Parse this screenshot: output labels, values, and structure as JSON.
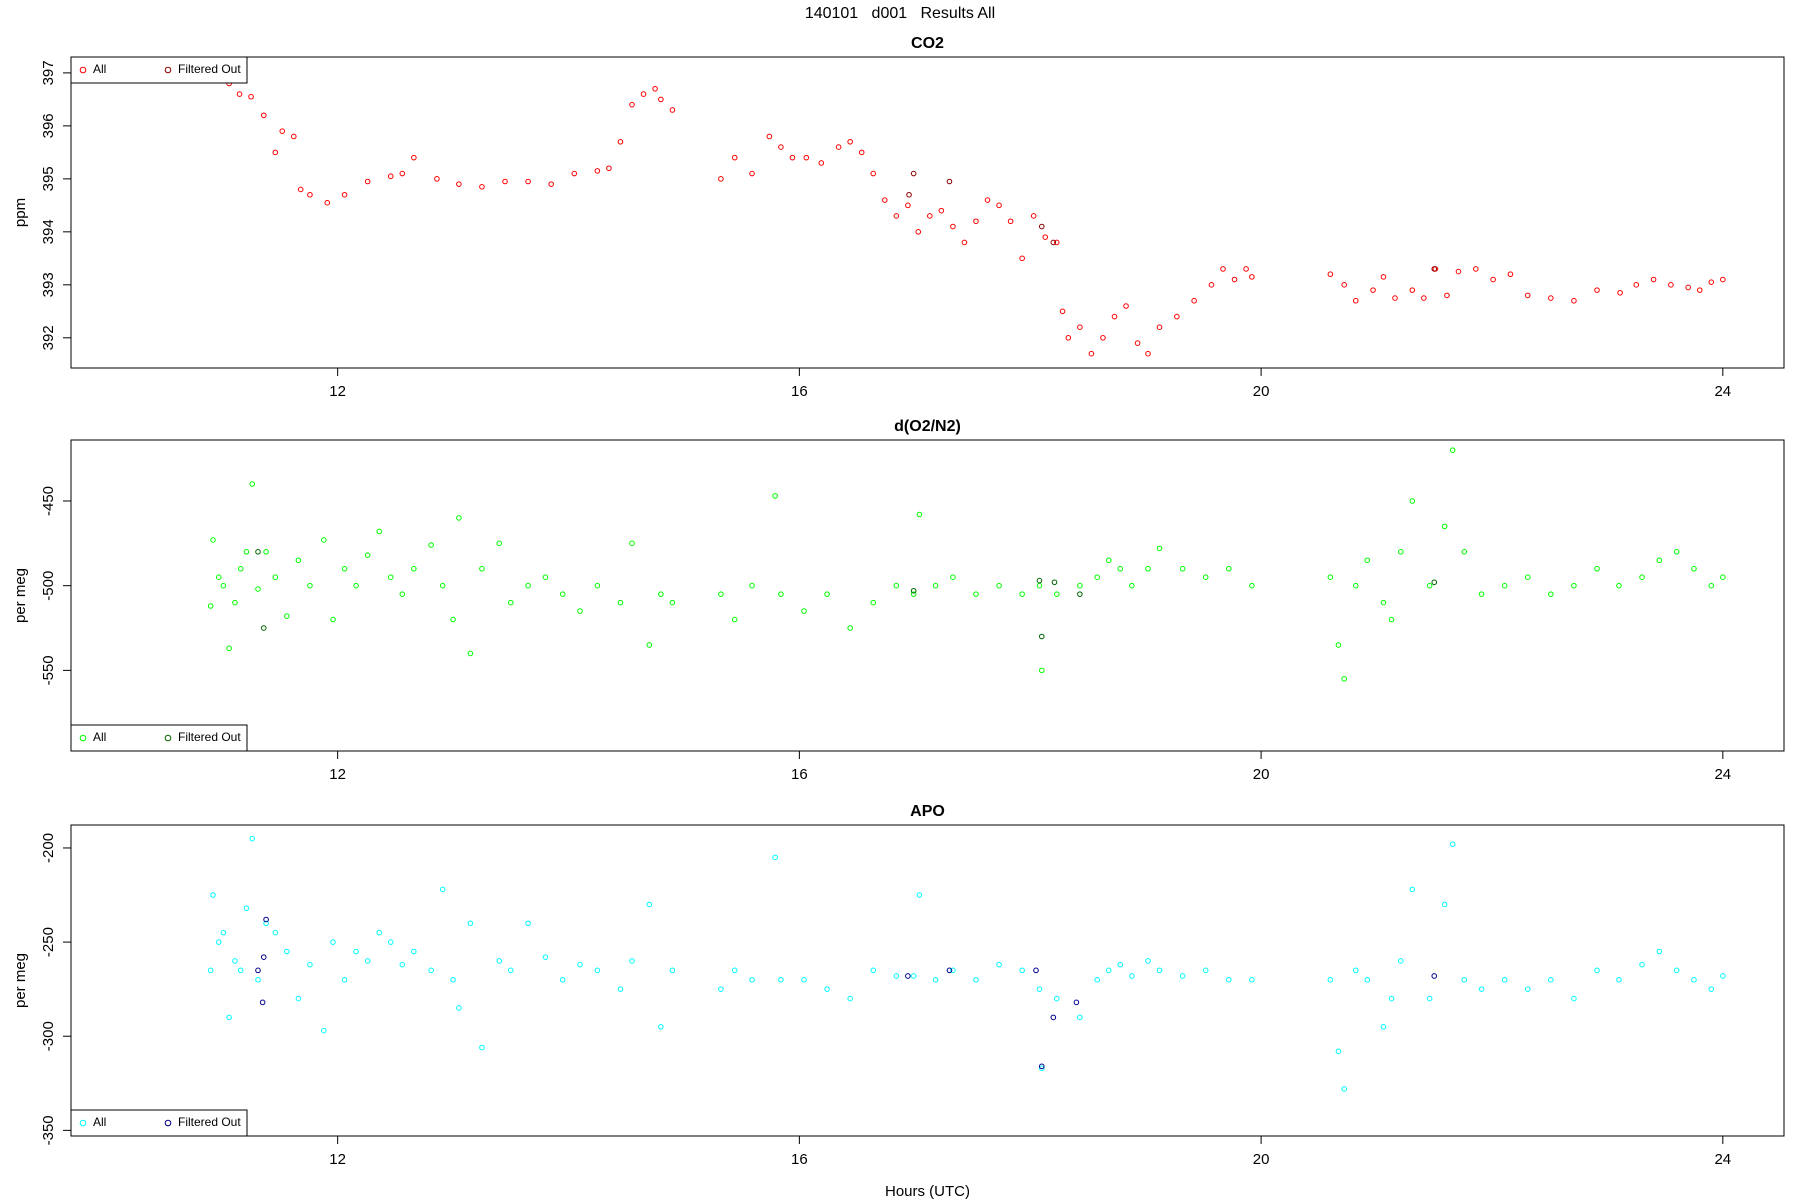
{
  "title": "140101   d001   Results All",
  "chart_data": [
    {
      "type": "scatter",
      "title": "CO2",
      "ylabel": "ppm",
      "xlim": [
        9.69,
        24.53
      ],
      "xticks": [
        12,
        16,
        20,
        24
      ],
      "ylim": [
        391.43,
        397.3
      ],
      "yticks": [
        392,
        393,
        394,
        395,
        396,
        397
      ],
      "legend": "topleft",
      "series": [
        {
          "name": "All",
          "color": "#ff0000",
          "x": [
            11.06,
            11.15,
            11.25,
            11.36,
            11.46,
            11.52,
            11.62,
            11.68,
            11.76,
            11.91,
            12.06,
            12.26,
            12.46,
            12.56,
            12.66,
            12.86,
            13.05,
            13.25,
            13.45,
            13.65,
            13.85,
            14.05,
            14.25,
            14.35,
            14.45,
            14.55,
            14.65,
            14.75,
            14.8,
            14.9,
            15.32,
            15.44,
            15.59,
            15.74,
            15.84,
            15.94,
            16.06,
            16.19,
            16.34,
            16.44,
            16.54,
            16.64,
            16.74,
            16.84,
            16.94,
            17.03,
            17.13,
            17.23,
            17.33,
            17.43,
            17.53,
            17.63,
            17.73,
            17.83,
            17.93,
            18.03,
            18.13,
            18.23,
            18.28,
            18.33,
            18.43,
            18.53,
            18.63,
            18.73,
            18.83,
            18.93,
            19.02,
            19.12,
            19.27,
            19.42,
            19.57,
            19.67,
            19.77,
            19.87,
            19.92,
            20.6,
            20.72,
            20.82,
            20.97,
            21.06,
            21.16,
            21.31,
            21.41,
            21.51,
            21.61,
            21.71,
            21.86,
            22.01,
            22.16,
            22.31,
            22.51,
            22.71,
            22.91,
            23.11,
            23.25,
            23.4,
            23.55,
            23.7,
            23.8,
            23.9,
            24.0
          ],
          "values": [
            396.8,
            396.6,
            396.55,
            396.2,
            395.5,
            395.9,
            395.8,
            394.8,
            394.7,
            394.55,
            394.7,
            394.95,
            395.05,
            395.1,
            395.4,
            395.0,
            394.9,
            394.85,
            394.95,
            394.95,
            394.9,
            395.1,
            395.15,
            395.2,
            395.7,
            396.4,
            396.6,
            396.7,
            396.5,
            396.3,
            395.0,
            395.4,
            395.1,
            395.8,
            395.6,
            395.4,
            395.4,
            395.3,
            395.6,
            395.7,
            395.5,
            395.1,
            394.6,
            394.3,
            394.5,
            394.0,
            394.3,
            394.4,
            394.1,
            393.8,
            394.2,
            394.6,
            394.5,
            394.2,
            393.5,
            394.3,
            393.9,
            393.8,
            392.5,
            392.0,
            392.2,
            391.7,
            392.0,
            392.4,
            392.6,
            391.9,
            391.7,
            392.2,
            392.4,
            392.7,
            393.0,
            393.3,
            393.1,
            393.3,
            393.15,
            393.2,
            393.0,
            392.7,
            392.9,
            393.15,
            392.75,
            392.9,
            392.75,
            393.3,
            392.8,
            393.25,
            393.3,
            393.1,
            393.2,
            392.8,
            392.75,
            392.7,
            392.9,
            392.85,
            393.0,
            393.1,
            393.0,
            392.95,
            392.9,
            393.05,
            393.1
          ]
        },
        {
          "name": "Filtered Out",
          "color": "#8b0000",
          "x": [
            16.95,
            16.99,
            17.3,
            18.1,
            18.2,
            21.5
          ],
          "values": [
            394.7,
            395.1,
            394.95,
            394.1,
            393.8,
            393.3
          ]
        }
      ]
    },
    {
      "type": "scatter",
      "title": "d(O2/N2)",
      "ylabel": "per meg",
      "xlim": [
        9.69,
        24.53
      ],
      "xticks": [
        12,
        16,
        20,
        24
      ],
      "ylim": [
        -597.6,
        -414
      ],
      "yticks": [
        -550,
        -500,
        -450
      ],
      "legend": "bottomleft",
      "series": [
        {
          "name": "All",
          "color": "#00ff00",
          "x": [
            10.9,
            10.92,
            10.97,
            11.01,
            11.06,
            11.11,
            11.16,
            11.21,
            11.26,
            11.31,
            11.38,
            11.46,
            11.56,
            11.66,
            11.76,
            11.88,
            11.96,
            12.06,
            12.16,
            12.26,
            12.36,
            12.46,
            12.56,
            12.66,
            12.81,
            12.91,
            13.0,
            13.05,
            13.15,
            13.25,
            13.4,
            13.5,
            13.65,
            13.8,
            13.95,
            14.1,
            14.25,
            14.45,
            14.55,
            14.7,
            14.8,
            14.9,
            15.32,
            15.44,
            15.59,
            15.79,
            15.84,
            16.04,
            16.24,
            16.44,
            16.64,
            16.84,
            16.99,
            17.04,
            17.18,
            17.33,
            17.53,
            17.73,
            17.93,
            18.08,
            18.1,
            18.23,
            18.43,
            18.58,
            18.68,
            18.78,
            18.88,
            19.02,
            19.12,
            19.32,
            19.52,
            19.72,
            19.92,
            20.6,
            20.67,
            20.72,
            20.82,
            20.92,
            21.06,
            21.13,
            21.21,
            21.31,
            21.46,
            21.59,
            21.66,
            21.76,
            21.91,
            22.11,
            22.31,
            22.51,
            22.71,
            22.91,
            23.1,
            23.3,
            23.45,
            23.6,
            23.75,
            23.9,
            24.0
          ],
          "values": [
            -512,
            -473,
            -495,
            -500,
            -537,
            -510,
            -490,
            -480,
            -440,
            -502,
            -480,
            -495,
            -518,
            -485,
            -500,
            -473,
            -520,
            -490,
            -500,
            -482,
            -468,
            -495,
            -505,
            -490,
            -476,
            -500,
            -520,
            -460,
            -540,
            -490,
            -475,
            -510,
            -500,
            -495,
            -505,
            -515,
            -500,
            -510,
            -475,
            -535,
            -505,
            -510,
            -505,
            -520,
            -500,
            -447,
            -505,
            -515,
            -505,
            -525,
            -510,
            -500,
            -505,
            -458,
            -500,
            -495,
            -505,
            -500,
            -505,
            -500,
            -550,
            -505,
            -500,
            -495,
            -485,
            -490,
            -500,
            -490,
            -478,
            -490,
            -495,
            -490,
            -500,
            -495,
            -535,
            -555,
            -500,
            -485,
            -510,
            -520,
            -480,
            -450,
            -500,
            -465,
            -420,
            -480,
            -505,
            -500,
            -495,
            -505,
            -500,
            -490,
            -500,
            -495,
            -485,
            -480,
            -490,
            -500,
            -495
          ]
        },
        {
          "name": "Filtered Out",
          "color": "#006400",
          "x": [
            11.31,
            11.36,
            16.99,
            18.08,
            18.1,
            18.21,
            18.43,
            21.5
          ],
          "values": [
            -480,
            -525,
            -503,
            -497,
            -530,
            -498,
            -505,
            -498
          ]
        }
      ]
    },
    {
      "type": "scatter",
      "title": "APO",
      "ylabel": "per meg",
      "xlabel": "Hours (UTC)",
      "xlim": [
        9.69,
        24.53
      ],
      "xticks": [
        12,
        16,
        20,
        24
      ],
      "ylim": [
        -353,
        -187.8
      ],
      "yticks": [
        -350,
        -300,
        -250,
        -200
      ],
      "legend": "bottomleft",
      "series": [
        {
          "name": "All",
          "color": "#00ffff",
          "x": [
            10.9,
            10.92,
            10.97,
            11.01,
            11.06,
            11.11,
            11.16,
            11.21,
            11.26,
            11.31,
            11.38,
            11.46,
            11.56,
            11.66,
            11.76,
            11.88,
            11.96,
            12.06,
            12.16,
            12.26,
            12.36,
            12.46,
            12.56,
            12.66,
            12.81,
            12.91,
            13.0,
            13.05,
            13.15,
            13.25,
            13.4,
            13.5,
            13.65,
            13.8,
            13.95,
            14.1,
            14.25,
            14.45,
            14.55,
            14.7,
            14.8,
            14.9,
            15.32,
            15.44,
            15.59,
            15.79,
            15.84,
            16.04,
            16.24,
            16.44,
            16.64,
            16.84,
            16.99,
            17.04,
            17.18,
            17.33,
            17.53,
            17.73,
            17.93,
            18.08,
            18.1,
            18.23,
            18.43,
            18.58,
            18.68,
            18.78,
            18.88,
            19.02,
            19.12,
            19.32,
            19.52,
            19.72,
            19.92,
            20.6,
            20.67,
            20.72,
            20.82,
            20.92,
            21.06,
            21.13,
            21.21,
            21.31,
            21.46,
            21.59,
            21.66,
            21.76,
            21.91,
            22.11,
            22.31,
            22.51,
            22.71,
            22.91,
            23.1,
            23.3,
            23.45,
            23.6,
            23.75,
            23.9,
            24.0
          ],
          "values": [
            -265,
            -225,
            -250,
            -245,
            -290,
            -260,
            -265,
            -232,
            -195,
            -270,
            -240,
            -245,
            -255,
            -280,
            -262,
            -297,
            -250,
            -270,
            -255,
            -260,
            -245,
            -250,
            -262,
            -255,
            -265,
            -222,
            -270,
            -285,
            -240,
            -306,
            -260,
            -265,
            -240,
            -258,
            -270,
            -262,
            -265,
            -275,
            -260,
            -230,
            -295,
            -265,
            -275,
            -265,
            -270,
            -205,
            -270,
            -270,
            -275,
            -280,
            -265,
            -268,
            -268,
            -225,
            -270,
            -265,
            -270,
            -262,
            -265,
            -275,
            -317,
            -280,
            -290,
            -270,
            -265,
            -262,
            -268,
            -260,
            -265,
            -268,
            -265,
            -270,
            -270,
            -270,
            -308,
            -328,
            -265,
            -270,
            -295,
            -280,
            -260,
            -222,
            -280,
            -230,
            -198,
            -270,
            -275,
            -270,
            -275,
            -270,
            -280,
            -265,
            -270,
            -262,
            -255,
            -265,
            -270,
            -275,
            -268
          ]
        },
        {
          "name": "Filtered Out",
          "color": "#00008b",
          "x": [
            11.31,
            11.35,
            11.36,
            11.38,
            16.94,
            17.3,
            18.05,
            18.1,
            18.2,
            18.4,
            21.5
          ],
          "values": [
            -265,
            -282,
            -258,
            -238,
            -268,
            -265,
            -265,
            -316,
            -290,
            -282,
            -268
          ]
        }
      ]
    }
  ]
}
